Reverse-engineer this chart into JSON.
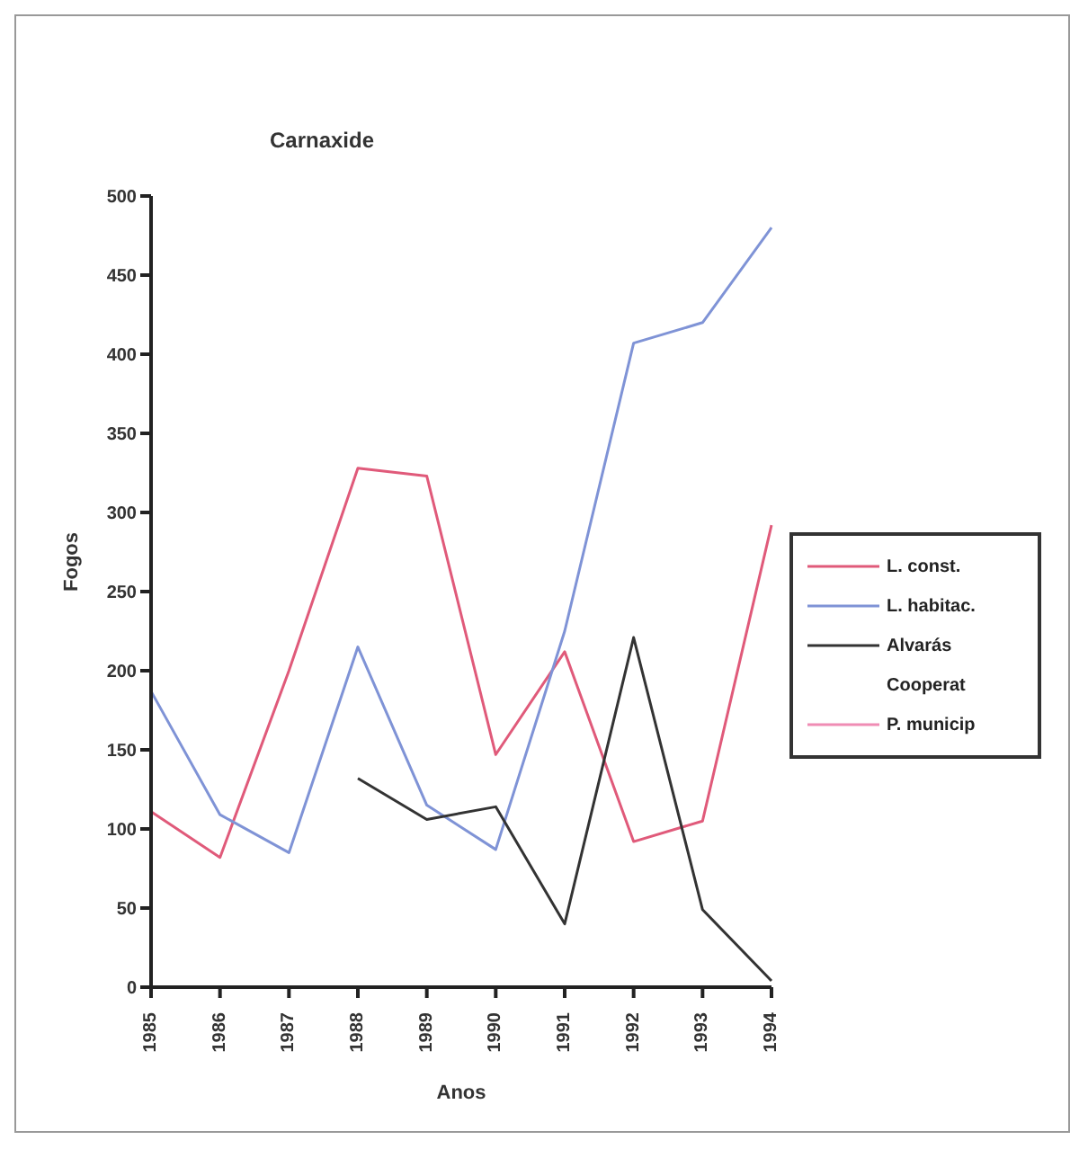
{
  "chart_data": {
    "type": "line",
    "title": "Carnaxide",
    "xlabel": "Anos",
    "ylabel": "Fogos",
    "categories": [
      "1985",
      "1986",
      "1987",
      "1988",
      "1989",
      "1990",
      "1991",
      "1992",
      "1993",
      "1994"
    ],
    "series": [
      {
        "name": "L. const.",
        "color": "#e05a7a",
        "values": [
          111,
          82,
          200,
          328,
          323,
          147,
          212,
          92,
          105,
          292
        ]
      },
      {
        "name": "L. habitac.",
        "color": "#7f93d6",
        "values": [
          187,
          109,
          85,
          215,
          115,
          87,
          225,
          407,
          420,
          480
        ]
      },
      {
        "name": "Alvarás",
        "color": "#333333",
        "values": [
          null,
          null,
          null,
          132,
          106,
          114,
          40,
          221,
          49,
          4
        ]
      },
      {
        "name": "Cooperat",
        "values": [
          null,
          null,
          null,
          null,
          null,
          null,
          null,
          null,
          null,
          null
        ]
      },
      {
        "name": "P. municip",
        "color": "#f08cb4",
        "values": [
          null,
          null,
          null,
          null,
          null,
          null,
          null,
          null,
          null,
          null
        ]
      }
    ],
    "ylim": [
      0,
      500
    ],
    "yticks": [
      0,
      50,
      100,
      150,
      200,
      250,
      300,
      350,
      400,
      450,
      500
    ],
    "grid": false,
    "legend": "right",
    "marker": "none",
    "line_style": "solid"
  }
}
